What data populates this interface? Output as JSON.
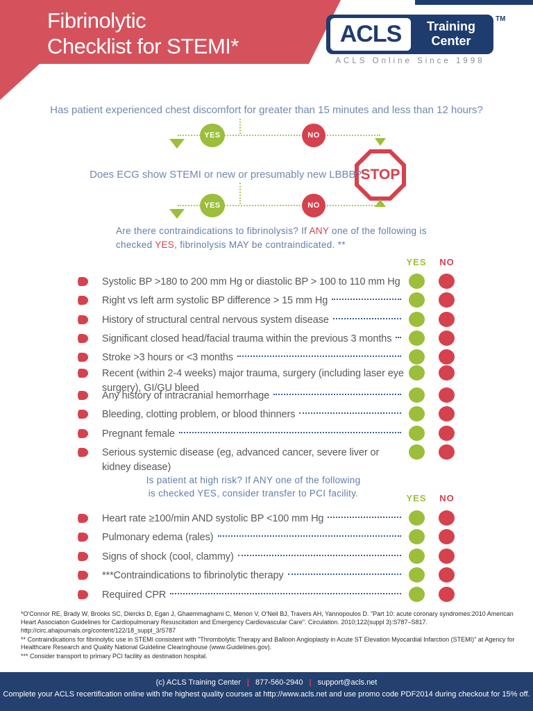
{
  "colors": {
    "red_band": "#D5525C",
    "red_accent": "#D6414E",
    "green": "#9CBE3A",
    "green_line": "#AFC957",
    "navy": "#1E3C6E",
    "footer_navy": "#24406F",
    "q_blue": "#7189AE",
    "note_blue": "#5F7EA9",
    "item_gray": "#57585A",
    "leader_navy": "#3A5C95",
    "tag_gray": "#8C8C8C"
  },
  "header": {
    "title_line1": "Fibrinolytic",
    "title_line2": "Checklist for STEMI*",
    "logo": {
      "acls": "ACLS",
      "training": "Training",
      "center": "Center",
      "tm": "TM",
      "tagline": "ACLS Online Since 1998"
    }
  },
  "flowchart": {
    "question1": "Has patient experienced chest discomfort for greater than 15 minutes and less than 12 hours?",
    "question2": "Does ECG show STEMI or new or presumably new LBBB?",
    "yes_label": "YES",
    "no_label": "NO",
    "stop_label": "STOP"
  },
  "section1": {
    "intro": {
      "part1": "Are there contraindications to fibrinolysis? If ",
      "any": "ANY",
      "part2": " one of the following is checked ",
      "yes": "YES,",
      "part3": " fibrinolysis MAY be contraindicated. **"
    },
    "col_yes": "YES",
    "col_no": "NO",
    "items": [
      {
        "text": "Systolic BP >180 to 200 mm Hg or diastolic BP > 100 to 110 mm Hg"
      },
      {
        "text": "Right vs left arm systolic BP difference > 15 mm Hg"
      },
      {
        "text": "History of structural central nervous system disease"
      },
      {
        "text": "Significant closed head/facial trauma within the previous 3 months"
      },
      {
        "text": "Stroke >3 hours or <3 months"
      },
      {
        "text": "Recent (within 2-4 weeks) major trauma, surgery (including laser eye surgery), GI/GU bleed"
      },
      {
        "text": "Any history of intracranial hemorrhage"
      },
      {
        "text": "Bleeding, clotting problem, or blood thinners"
      },
      {
        "text": "Pregnant female"
      },
      {
        "text": "Serious systemic disease (eg, advanced cancer, severe liver or kidney disease)"
      }
    ]
  },
  "section2": {
    "intro_line1": "Is patient at high risk? If ANY one of the following",
    "intro_line2": "is checked YES, consider transfer to PCI facility.",
    "col_yes": "YES",
    "col_no": "NO",
    "items": [
      {
        "text": "Heart rate ≥100/min AND systolic BP <100 mm Hg"
      },
      {
        "text": "Pulmonary edema (rales)"
      },
      {
        "text": "Signs of shock (cool, clammy)"
      },
      {
        "text": "***Contraindications to fibrinolytic therapy"
      },
      {
        "text": "Required CPR"
      }
    ]
  },
  "footnotes": [
    "*O'Connor RE, Brady W, Brooks SC, Diercks D, Egan J, Ghaemmaghami C, Menon V, O'Neil BJ, Travers AH, Yannopoulos D. \"Part 10: acute coronary syndromes:2010 American Heart Association Guidelines for Cardiopulmonary Resuscitation and Emergency Cardiovascular Care\". Circulation. 2010;122(suppl 3):S787–S817.",
    "http://circ.ahajournals.org/content/122/18_suppl_3/S787",
    "** Contraindications for fibrinolytic use in STEMI consistent with \"Thrombolytic Therapy and Balloon Angioplasty in Acute ST Elevation Myocardial Infarction (STEMI)\" at Agency for Healthcare Research and Quality National Guideline Clearinghouse (www.Guidelines.gov).",
    "*** Consider transport to primary PCI facility as destination hospital."
  ],
  "footer": {
    "copyright": "(c) ACLS Training Center",
    "phone": "877-560-2940",
    "email": "support@acls.net",
    "separator": "|",
    "promo": "Complete your ACLS recertification online with the highest quality courses at http://www.acls.net and use promo code PDF2014 during checkout for 15% off."
  }
}
